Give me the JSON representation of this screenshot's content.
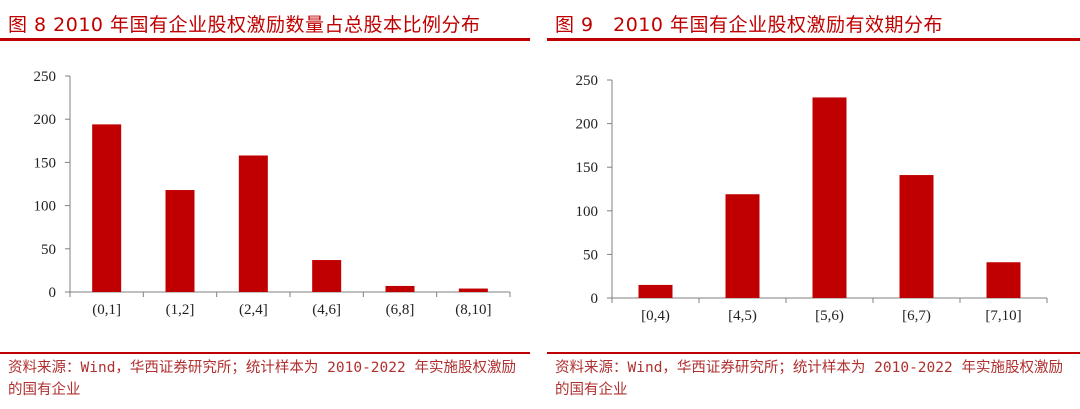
{
  "chart_data": [
    {
      "type": "bar",
      "title": "图 8 2010 年国有企业股权激励数量占总股本比例分布",
      "categories": [
        "(0,1]",
        "(1,2]",
        "(2,4]",
        "(4,6]",
        "(6,8]",
        "(8,10]"
      ],
      "values": [
        194,
        118,
        158,
        37,
        7,
        4
      ],
      "ylim": [
        0,
        250
      ],
      "yticks": [
        0,
        50,
        100,
        150,
        200,
        250
      ],
      "xlabel": "",
      "ylabel": "",
      "source": "资料来源：Wind，华西证券研究所；统计样本为 2010-2022 年实施股权激励的国有企业",
      "colors": {
        "bar": "#c00000",
        "title": "#c00000"
      }
    },
    {
      "type": "bar",
      "title": "图 9　2010 年国有企业股权激励有效期分布",
      "categories": [
        "[0,4)",
        "[4,5)",
        "[5,6)",
        "[6,7)",
        "[7,10]"
      ],
      "values": [
        15,
        119,
        230,
        141,
        41
      ],
      "ylim": [
        0,
        250
      ],
      "yticks": [
        0,
        50,
        100,
        150,
        200,
        250
      ],
      "xlabel": "",
      "ylabel": "",
      "source": "资料来源：Wind，华西证券研究所；统计样本为 2010-2022 年实施股权激励的国有企业",
      "colors": {
        "bar": "#c00000",
        "title": "#c00000"
      }
    }
  ]
}
